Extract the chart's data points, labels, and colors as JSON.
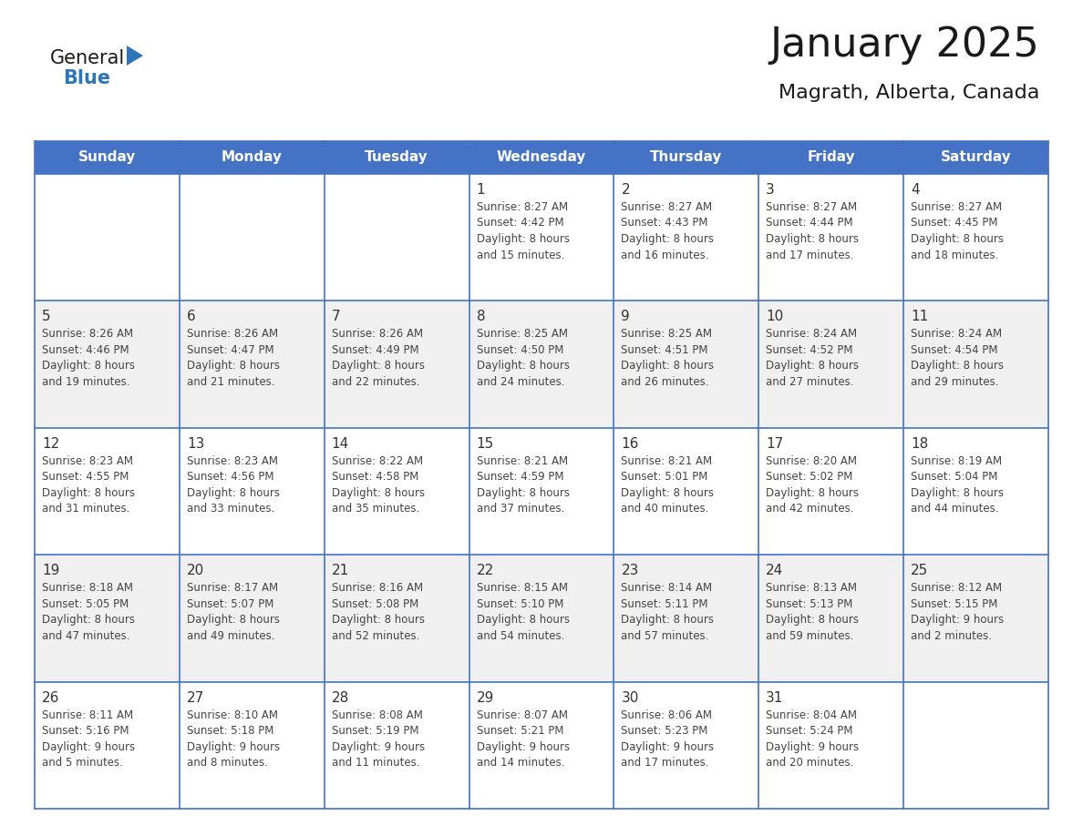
{
  "title": "January 2025",
  "subtitle": "Magrath, Alberta, Canada",
  "header_bg": "#4472C4",
  "header_text": "#FFFFFF",
  "weekdays": [
    "Sunday",
    "Monday",
    "Tuesday",
    "Wednesday",
    "Thursday",
    "Friday",
    "Saturday"
  ],
  "grid_line_color": "#4472C4",
  "title_color": "#1a1a1a",
  "subtitle_color": "#1a1a1a",
  "logo_general_color": "#1a1a1a",
  "logo_blue_color": "#2E75B6",
  "logo_triangle_color": "#2E75B6",
  "cell_text_color": "#444444",
  "row_bg": [
    "#FFFFFF",
    "#F0F0F0"
  ],
  "calendar": [
    [
      null,
      null,
      null,
      {
        "day": 1,
        "sunrise": "8:27 AM",
        "sunset": "4:42 PM",
        "daylight": "8 hours and 15 minutes."
      },
      {
        "day": 2,
        "sunrise": "8:27 AM",
        "sunset": "4:43 PM",
        "daylight": "8 hours and 16 minutes."
      },
      {
        "day": 3,
        "sunrise": "8:27 AM",
        "sunset": "4:44 PM",
        "daylight": "8 hours and 17 minutes."
      },
      {
        "day": 4,
        "sunrise": "8:27 AM",
        "sunset": "4:45 PM",
        "daylight": "8 hours and 18 minutes."
      }
    ],
    [
      {
        "day": 5,
        "sunrise": "8:26 AM",
        "sunset": "4:46 PM",
        "daylight": "8 hours and 19 minutes."
      },
      {
        "day": 6,
        "sunrise": "8:26 AM",
        "sunset": "4:47 PM",
        "daylight": "8 hours and 21 minutes."
      },
      {
        "day": 7,
        "sunrise": "8:26 AM",
        "sunset": "4:49 PM",
        "daylight": "8 hours and 22 minutes."
      },
      {
        "day": 8,
        "sunrise": "8:25 AM",
        "sunset": "4:50 PM",
        "daylight": "8 hours and 24 minutes."
      },
      {
        "day": 9,
        "sunrise": "8:25 AM",
        "sunset": "4:51 PM",
        "daylight": "8 hours and 26 minutes."
      },
      {
        "day": 10,
        "sunrise": "8:24 AM",
        "sunset": "4:52 PM",
        "daylight": "8 hours and 27 minutes."
      },
      {
        "day": 11,
        "sunrise": "8:24 AM",
        "sunset": "4:54 PM",
        "daylight": "8 hours and 29 minutes."
      }
    ],
    [
      {
        "day": 12,
        "sunrise": "8:23 AM",
        "sunset": "4:55 PM",
        "daylight": "8 hours and 31 minutes."
      },
      {
        "day": 13,
        "sunrise": "8:23 AM",
        "sunset": "4:56 PM",
        "daylight": "8 hours and 33 minutes."
      },
      {
        "day": 14,
        "sunrise": "8:22 AM",
        "sunset": "4:58 PM",
        "daylight": "8 hours and 35 minutes."
      },
      {
        "day": 15,
        "sunrise": "8:21 AM",
        "sunset": "4:59 PM",
        "daylight": "8 hours and 37 minutes."
      },
      {
        "day": 16,
        "sunrise": "8:21 AM",
        "sunset": "5:01 PM",
        "daylight": "8 hours and 40 minutes."
      },
      {
        "day": 17,
        "sunrise": "8:20 AM",
        "sunset": "5:02 PM",
        "daylight": "8 hours and 42 minutes."
      },
      {
        "day": 18,
        "sunrise": "8:19 AM",
        "sunset": "5:04 PM",
        "daylight": "8 hours and 44 minutes."
      }
    ],
    [
      {
        "day": 19,
        "sunrise": "8:18 AM",
        "sunset": "5:05 PM",
        "daylight": "8 hours and 47 minutes."
      },
      {
        "day": 20,
        "sunrise": "8:17 AM",
        "sunset": "5:07 PM",
        "daylight": "8 hours and 49 minutes."
      },
      {
        "day": 21,
        "sunrise": "8:16 AM",
        "sunset": "5:08 PM",
        "daylight": "8 hours and 52 minutes."
      },
      {
        "day": 22,
        "sunrise": "8:15 AM",
        "sunset": "5:10 PM",
        "daylight": "8 hours and 54 minutes."
      },
      {
        "day": 23,
        "sunrise": "8:14 AM",
        "sunset": "5:11 PM",
        "daylight": "8 hours and 57 minutes."
      },
      {
        "day": 24,
        "sunrise": "8:13 AM",
        "sunset": "5:13 PM",
        "daylight": "8 hours and 59 minutes."
      },
      {
        "day": 25,
        "sunrise": "8:12 AM",
        "sunset": "5:15 PM",
        "daylight": "9 hours and 2 minutes."
      }
    ],
    [
      {
        "day": 26,
        "sunrise": "8:11 AM",
        "sunset": "5:16 PM",
        "daylight": "9 hours and 5 minutes."
      },
      {
        "day": 27,
        "sunrise": "8:10 AM",
        "sunset": "5:18 PM",
        "daylight": "9 hours and 8 minutes."
      },
      {
        "day": 28,
        "sunrise": "8:08 AM",
        "sunset": "5:19 PM",
        "daylight": "9 hours and 11 minutes."
      },
      {
        "day": 29,
        "sunrise": "8:07 AM",
        "sunset": "5:21 PM",
        "daylight": "9 hours and 14 minutes."
      },
      {
        "day": 30,
        "sunrise": "8:06 AM",
        "sunset": "5:23 PM",
        "daylight": "9 hours and 17 minutes."
      },
      {
        "day": 31,
        "sunrise": "8:04 AM",
        "sunset": "5:24 PM",
        "daylight": "9 hours and 20 minutes."
      },
      null
    ]
  ]
}
